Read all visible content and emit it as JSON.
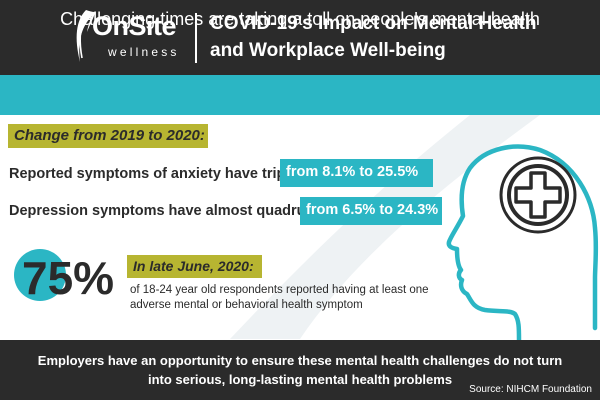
{
  "header": {
    "logo_main": "OnSite",
    "logo_sub": "wellness",
    "title_line1": "COVID-19's Impact on Mental Health",
    "title_line2": "and Workplace Well-being"
  },
  "banner": {
    "text": "Challenging times are taking a toll on people's mental health"
  },
  "change_section": {
    "tag": "Change from 2019 to 2020:",
    "stats": [
      {
        "text": "Reported symptoms of anxiety have tripled",
        "highlight": "from 8.1% to 25.5%"
      },
      {
        "text": "Depression symptoms have almost quadrupled",
        "highlight": "from 6.5% to 24.3%"
      }
    ]
  },
  "june_section": {
    "percent": "75%",
    "tag": "In late June, 2020:",
    "description": "of 18-24 year old respondents reported having at least one adverse mental or behavioral health symptom"
  },
  "footer": {
    "text": "Employers have an opportunity to ensure these mental health challenges do not turn into serious, long-lasting mental health problems",
    "source": "Source: NIHCM Foundation"
  },
  "icons": {
    "logo": "leaf-logo-icon",
    "head": "head-profile-icon",
    "medical": "medical-cross-icon"
  },
  "colors": {
    "dark": "#2b2b2b",
    "teal": "#2bb6c4",
    "olive": "#b7b531",
    "white": "#ffffff"
  }
}
